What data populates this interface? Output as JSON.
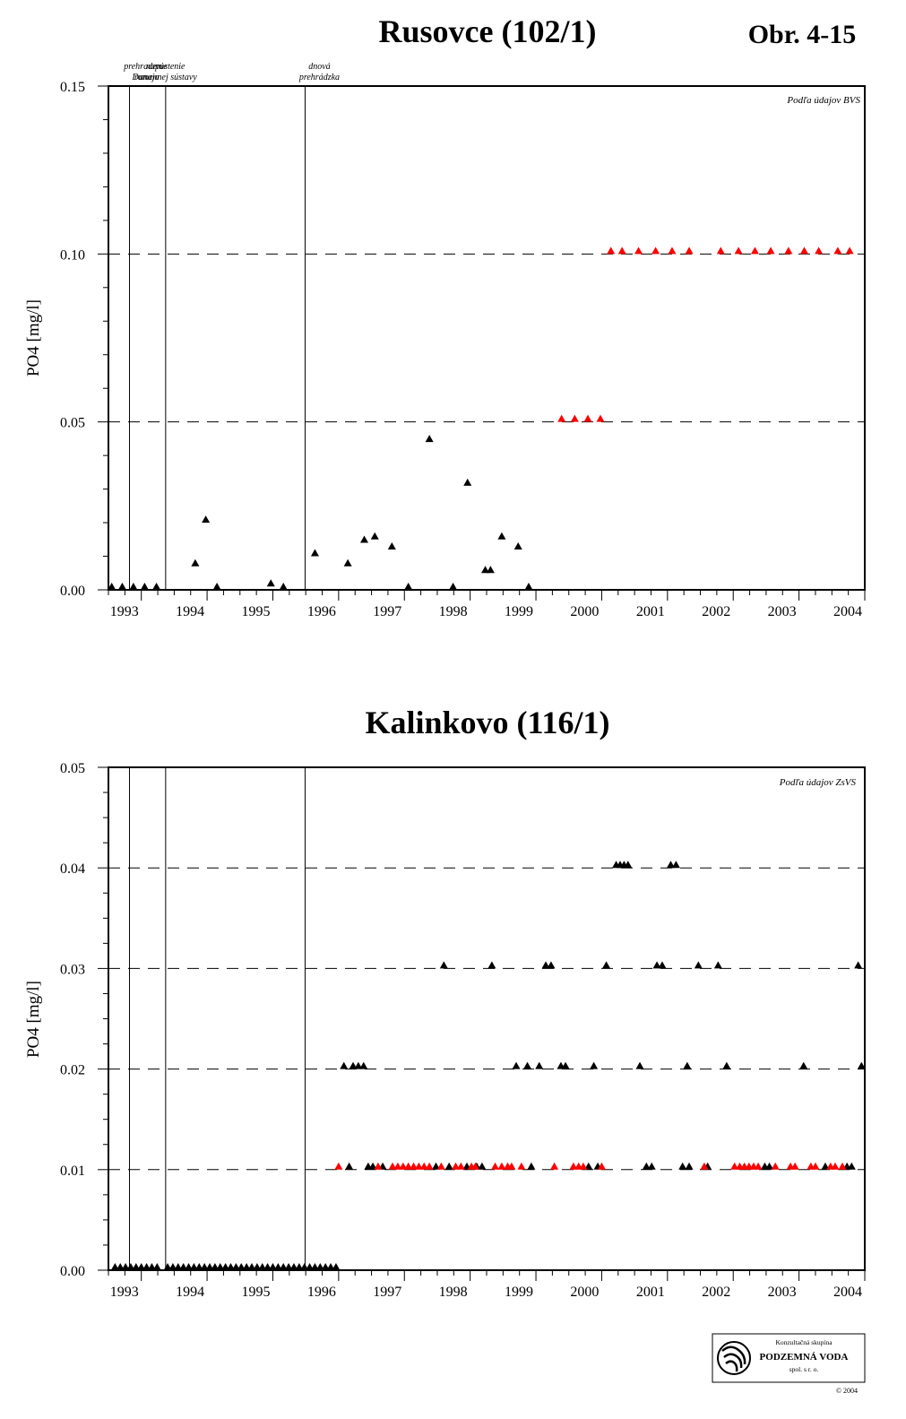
{
  "figure_number": "Obr. 4-15",
  "colors": {
    "measured": "#000000",
    "below_detection": "#ff0000"
  },
  "icons": {
    "marker": "triangle-marker-icon",
    "logo": "podzemna-voda-logo-icon"
  },
  "logo": {
    "line1": "Konzultačná skupina",
    "line2": "PODZEMNÁ VODA",
    "line3": "spol. s r. o.",
    "copyright": "© 2004"
  },
  "chart_data": [
    {
      "type": "scatter",
      "title": "Rusovce (102/1)",
      "ylabel": "PO4 [mg/l]",
      "xlabel": "",
      "source_note": "Podľa údajov BVS",
      "xlim": [
        1992.5,
        2004.0
      ],
      "ylim": [
        0,
        0.15
      ],
      "yticks": [
        0.15,
        0.1,
        0.05,
        0.0
      ],
      "ytick_labels": [
        "0.15",
        "0.10",
        "0.05",
        "0.00"
      ],
      "xtick_labels": [
        "1993",
        "1994",
        "1995",
        "1996",
        "1997",
        "1998",
        "1999",
        "2000",
        "2001",
        "2002",
        "2003",
        "2004"
      ],
      "grid": "dashed horizontal",
      "events": [
        {
          "x": 1992.82,
          "label_lines": [
            "prehradenie",
            "Dunaja"
          ]
        },
        {
          "x": 1993.37,
          "label_lines": [
            "napustenie",
            "ramennej sústavy"
          ]
        },
        {
          "x": 1995.49,
          "label_lines": [
            "dnová",
            "prehrádzka"
          ]
        }
      ],
      "series": [
        {
          "color": "#000000",
          "points": [
            [
              1992.55,
              0.0
            ],
            [
              1992.71,
              0.0
            ],
            [
              1992.88,
              0.0
            ],
            [
              1993.05,
              0.0
            ],
            [
              1993.23,
              0.0
            ],
            [
              1993.82,
              0.007
            ],
            [
              1993.98,
              0.02
            ],
            [
              1994.15,
              0.0
            ],
            [
              1994.97,
              0.001
            ],
            [
              1995.16,
              0.0
            ],
            [
              1995.64,
              0.01
            ],
            [
              1996.14,
              0.007
            ],
            [
              1996.39,
              0.014
            ],
            [
              1996.55,
              0.015
            ],
            [
              1996.81,
              0.012
            ],
            [
              1997.06,
              0.0
            ],
            [
              1997.38,
              0.044
            ],
            [
              1997.74,
              0.0
            ],
            [
              1997.96,
              0.031
            ],
            [
              1998.23,
              0.005
            ],
            [
              1998.31,
              0.005
            ],
            [
              1998.48,
              0.015
            ],
            [
              1998.73,
              0.012
            ],
            [
              1998.89,
              0.0
            ]
          ]
        },
        {
          "color": "#ff0000",
          "points": [
            [
              1999.39,
              0.05
            ],
            [
              1999.59,
              0.05
            ],
            [
              1999.79,
              0.05
            ],
            [
              1999.98,
              0.05
            ],
            [
              2000.14,
              0.1
            ],
            [
              2000.31,
              0.1
            ],
            [
              2000.56,
              0.1
            ],
            [
              2000.82,
              0.1
            ],
            [
              2001.07,
              0.1
            ],
            [
              2001.33,
              0.1
            ],
            [
              2001.81,
              0.1
            ],
            [
              2002.08,
              0.1
            ],
            [
              2002.33,
              0.1
            ],
            [
              2002.57,
              0.1
            ],
            [
              2002.84,
              0.1
            ],
            [
              2003.08,
              0.1
            ],
            [
              2003.3,
              0.1
            ],
            [
              2003.59,
              0.1
            ],
            [
              2003.77,
              0.1
            ]
          ]
        }
      ]
    },
    {
      "type": "scatter",
      "title": "Kalinkovo (116/1)",
      "ylabel": "PO4 [mg/l]",
      "xlabel": "",
      "source_note": "Podľa údajov ZsVS",
      "xlim": [
        1992.5,
        2004.0
      ],
      "ylim": [
        0,
        0.05
      ],
      "yticks": [
        0.05,
        0.04,
        0.03,
        0.02,
        0.01,
        0.0
      ],
      "ytick_labels": [
        "0.05",
        "0.04",
        "0.03",
        "0.02",
        "0.01",
        "0.00"
      ],
      "xtick_labels": [
        "1993",
        "1994",
        "1995",
        "1996",
        "1997",
        "1998",
        "1999",
        "2000",
        "2001",
        "2002",
        "2003",
        "2004"
      ],
      "grid": "dashed horizontal",
      "events": [
        {
          "x": 1992.82,
          "label_lines": []
        },
        {
          "x": 1993.37,
          "label_lines": []
        },
        {
          "x": 1995.49,
          "label_lines": []
        }
      ],
      "series": [
        {
          "color": "#000000",
          "points": [
            [
              1992.6,
              0.0
            ],
            [
              1992.68,
              0.0
            ],
            [
              1992.76,
              0.0
            ],
            [
              1992.84,
              0.0
            ],
            [
              1992.92,
              0.0
            ],
            [
              1993.0,
              0.0
            ],
            [
              1993.08,
              0.0
            ],
            [
              1993.16,
              0.0
            ],
            [
              1993.24,
              0.0
            ],
            [
              1993.4,
              0.0
            ],
            [
              1993.48,
              0.0
            ],
            [
              1993.56,
              0.0
            ],
            [
              1993.64,
              0.0
            ],
            [
              1993.72,
              0.0
            ],
            [
              1993.8,
              0.0
            ],
            [
              1993.88,
              0.0
            ],
            [
              1993.96,
              0.0
            ],
            [
              1994.04,
              0.0
            ],
            [
              1994.12,
              0.0
            ],
            [
              1994.2,
              0.0
            ],
            [
              1994.28,
              0.0
            ],
            [
              1994.36,
              0.0
            ],
            [
              1994.44,
              0.0
            ],
            [
              1994.52,
              0.0
            ],
            [
              1994.6,
              0.0
            ],
            [
              1994.68,
              0.0
            ],
            [
              1994.76,
              0.0
            ],
            [
              1994.84,
              0.0
            ],
            [
              1994.92,
              0.0
            ],
            [
              1995.0,
              0.0
            ],
            [
              1995.08,
              0.0
            ],
            [
              1995.16,
              0.0
            ],
            [
              1995.24,
              0.0
            ],
            [
              1995.32,
              0.0
            ],
            [
              1995.4,
              0.0
            ],
            [
              1995.48,
              0.0
            ],
            [
              1995.56,
              0.0
            ],
            [
              1995.64,
              0.0
            ],
            [
              1995.72,
              0.0
            ],
            [
              1995.8,
              0.0
            ],
            [
              1995.88,
              0.0
            ],
            [
              1995.96,
              0.0
            ],
            [
              1996.08,
              0.02
            ],
            [
              1996.22,
              0.02
            ],
            [
              1996.3,
              0.02
            ],
            [
              1996.38,
              0.02
            ],
            [
              1996.16,
              0.01
            ],
            [
              1996.45,
              0.01
            ],
            [
              1996.52,
              0.01
            ],
            [
              1996.67,
              0.01
            ],
            [
              1997.48,
              0.01
            ],
            [
              1997.6,
              0.03
            ],
            [
              1997.68,
              0.01
            ],
            [
              1997.95,
              0.01
            ],
            [
              1998.1,
              0.01
            ],
            [
              1998.18,
              0.01
            ],
            [
              1998.33,
              0.03
            ],
            [
              1998.7,
              0.02
            ],
            [
              1998.87,
              0.02
            ],
            [
              1998.93,
              0.01
            ],
            [
              1999.05,
              0.02
            ],
            [
              1999.15,
              0.03
            ],
            [
              1999.23,
              0.03
            ],
            [
              1999.38,
              0.02
            ],
            [
              1999.45,
              0.02
            ],
            [
              1999.8,
              0.01
            ],
            [
              1999.88,
              0.02
            ],
            [
              1999.94,
              0.01
            ],
            [
              2000.07,
              0.03
            ],
            [
              2000.22,
              0.04
            ],
            [
              2000.28,
              0.04
            ],
            [
              2000.34,
              0.04
            ],
            [
              2000.4,
              0.04
            ],
            [
              2000.58,
              0.02
            ],
            [
              2000.68,
              0.01
            ],
            [
              2000.76,
              0.01
            ],
            [
              2000.84,
              0.03
            ],
            [
              2000.92,
              0.03
            ],
            [
              2001.05,
              0.04
            ],
            [
              2001.13,
              0.04
            ],
            [
              2001.23,
              0.01
            ],
            [
              2001.3,
              0.02
            ],
            [
              2001.33,
              0.01
            ],
            [
              2001.47,
              0.03
            ],
            [
              2001.61,
              0.01
            ],
            [
              2001.77,
              0.03
            ],
            [
              2001.9,
              0.02
            ],
            [
              2002.48,
              0.01
            ],
            [
              2002.55,
              0.01
            ],
            [
              2003.07,
              0.02
            ],
            [
              2003.4,
              0.01
            ],
            [
              2003.73,
              0.01
            ],
            [
              2003.8,
              0.01
            ],
            [
              2003.9,
              0.03
            ],
            [
              2003.95,
              0.02
            ]
          ]
        },
        {
          "color": "#ff0000",
          "points": [
            [
              1996.0,
              0.01
            ],
            [
              1996.6,
              0.01
            ],
            [
              1996.82,
              0.01
            ],
            [
              1996.9,
              0.01
            ],
            [
              1996.98,
              0.01
            ],
            [
              1997.06,
              0.01
            ],
            [
              1997.14,
              0.01
            ],
            [
              1997.22,
              0.01
            ],
            [
              1997.3,
              0.01
            ],
            [
              1997.38,
              0.01
            ],
            [
              1997.56,
              0.01
            ],
            [
              1997.78,
              0.01
            ],
            [
              1997.86,
              0.01
            ],
            [
              2000.0,
              0.01
            ],
            [
              1998.02,
              0.01
            ],
            [
              1998.08,
              0.01
            ],
            [
              1998.38,
              0.01
            ],
            [
              1998.48,
              0.01
            ],
            [
              1998.57,
              0.01
            ],
            [
              1998.63,
              0.01
            ],
            [
              1998.78,
              0.01
            ],
            [
              1999.28,
              0.01
            ],
            [
              1999.57,
              0.01
            ],
            [
              1999.65,
              0.01
            ],
            [
              1999.72,
              0.01
            ],
            [
              2001.56,
              0.01
            ],
            [
              2002.02,
              0.01
            ],
            [
              2002.1,
              0.01
            ],
            [
              2002.17,
              0.01
            ],
            [
              2002.24,
              0.01
            ],
            [
              2002.31,
              0.01
            ],
            [
              2002.38,
              0.01
            ],
            [
              2002.64,
              0.01
            ],
            [
              2002.87,
              0.01
            ],
            [
              2002.94,
              0.01
            ],
            [
              2003.18,
              0.01
            ],
            [
              2003.25,
              0.01
            ],
            [
              2003.48,
              0.01
            ],
            [
              2003.55,
              0.01
            ],
            [
              2003.66,
              0.01
            ]
          ]
        }
      ]
    }
  ]
}
